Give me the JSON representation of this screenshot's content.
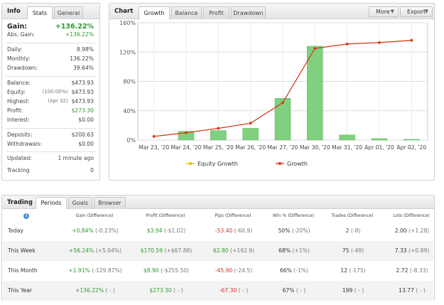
{
  "info": {
    "title": "Info",
    "tabs": [
      "Stats",
      "General"
    ],
    "gain_label": "Gain:",
    "gain_value": "+136.22%",
    "abs_gain_label": "Abs. Gain:",
    "abs_gain_value": "+136.22%",
    "daily_label": "Daily:",
    "daily_value": "8.98%",
    "monthly_label": "Monthly:",
    "monthly_value": "136.22%",
    "drawdown_label": "Drawdown:",
    "drawdown_value": "39.64%",
    "balance_label": "Balance:",
    "balance_value": "$473.93",
    "equity_label": "Equity:",
    "equity_pct": "(100.00%)",
    "equity_value": "$473.93",
    "highest_label": "Highest:",
    "highest_date": "(Apr 02)",
    "highest_value": "$473.93",
    "profit_label": "Profit:",
    "profit_value": "$273.30",
    "interest_label": "Interest:",
    "interest_value": "$0.00",
    "deposits_label": "Deposits:",
    "deposits_value": "$200.63",
    "withdrawals_label": "Withdrawals:",
    "withdrawals_value": "$0.00",
    "updated_label": "Updated:",
    "updated_value": "1 minute ago",
    "tracking_label": "Tracking",
    "tracking_value": "0"
  },
  "chart_panel": {
    "title": "Chart",
    "tabs": [
      "Growth",
      "Balance",
      "Profit",
      "Drawdown"
    ],
    "more_label": "More",
    "export_label": "Export"
  },
  "chart_data": {
    "type": "bar",
    "categories": [
      "Mar 23, '20",
      "Mar 24, '20",
      "Mar 25, '20",
      "Mar 26, '20",
      "Mar 27, '20",
      "Mar 30, '20",
      "Mar 31, '20",
      "Apr 01, '20",
      "Apr 02, '20"
    ],
    "y_ticks": [
      "0%",
      "40%",
      "80%",
      "120%",
      "160%"
    ],
    "ylim": [
      0,
      160
    ],
    "series": [
      {
        "name": "Equity Growth",
        "kind": "line",
        "color": "#e8b800",
        "values": [
          5,
          10,
          16,
          23,
          51,
          125,
          131,
          133,
          136
        ]
      },
      {
        "name": "Growth",
        "kind": "line",
        "color": "#d9371c",
        "values": [
          5,
          10,
          16,
          23,
          51,
          125,
          131,
          133,
          136
        ]
      },
      {
        "name": "Daily growth",
        "kind": "bar",
        "color": "#7fd07f",
        "values": [
          0,
          12,
          13,
          16,
          57,
          128,
          7,
          2,
          1
        ]
      }
    ],
    "legend": [
      "Equity Growth",
      "Growth"
    ],
    "legend_position": "bottom",
    "grid": true
  },
  "trading": {
    "title": "Trading",
    "tabs": [
      "Periods",
      "Goals",
      "Browser"
    ],
    "headers": [
      "Gain (Difference)",
      "Profit (Difference)",
      "Pips (Difference)",
      "Win % (Difference)",
      "Trades (Difference)",
      "Lots (Difference)"
    ],
    "rows": [
      {
        "period": "Today",
        "gain": "+0.84%",
        "gain_diff": "(-0.23%)",
        "profit": "$3.94",
        "profit_diff": "(-$1.02)",
        "pips": "-53.40",
        "pips_diff": "(-60.9)",
        "win": "50%",
        "win_diff": "(-20%)",
        "trades": "2",
        "trades_diff": "(-8)",
        "lots": "2.00",
        "lots_diff": "(+1.28)"
      },
      {
        "period": "This Week",
        "gain": "+56.24%",
        "gain_diff": "(+5.04%)",
        "profit": "$170.59",
        "profit_diff": "(+$67.88)",
        "pips": "62.80",
        "pips_diff": "(+192.9)",
        "win": "68%",
        "win_diff": "(+1%)",
        "trades": "75",
        "trades_diff": "(-49)",
        "lots": "7.33",
        "lots_diff": "(+0.89)"
      },
      {
        "period": "This Month",
        "gain": "+1.91%",
        "gain_diff": "(-129.87%)",
        "profit": "$8.90",
        "profit_diff": "(-$255.50)",
        "pips": "-45.90",
        "pips_diff": "(-24.5)",
        "win": "66%",
        "win_diff": "(-1%)",
        "trades": "12",
        "trades_diff": "(-175)",
        "lots": "2.72",
        "lots_diff": "(-8.33)"
      },
      {
        "period": "This Year",
        "gain": "+136.22%",
        "gain_diff": "( - )",
        "profit": "$273.30",
        "profit_diff": "( - )",
        "pips": "-67.30",
        "pips_diff": "( - )",
        "win": "67%",
        "win_diff": "( - )",
        "trades": "199",
        "trades_diff": "( - )",
        "lots": "13.77",
        "lots_diff": "( - )"
      }
    ]
  }
}
